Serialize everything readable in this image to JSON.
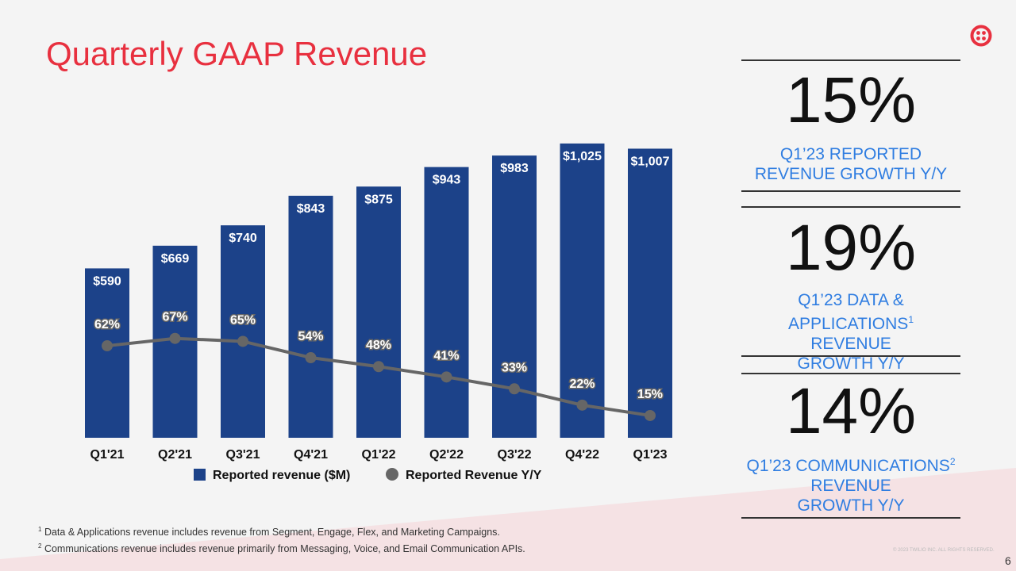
{
  "title": "Quarterly GAAP Revenue",
  "colors": {
    "title": "#e8303f",
    "bar": "#1c4289",
    "line": "#666666",
    "kpi_text": "#2f7de1"
  },
  "kpis": [
    {
      "value": "15%",
      "label": "Q1’23 REPORTED REVENUE GROWTH Y/Y",
      "sup": ""
    },
    {
      "value": "19%",
      "label_lines": [
        "Q1’23 DATA & APPLICATIONS",
        "REVENUE",
        "GROWTH Y/Y"
      ],
      "sup": "1"
    },
    {
      "value": "14%",
      "label_lines": [
        "Q1’23 COMMUNICATIONS",
        "REVENUE",
        "GROWTH Y/Y"
      ],
      "sup": "2"
    }
  ],
  "footnotes": [
    {
      "sup": "1",
      "text": "Data & Applications revenue includes revenue from Segment, Engage, Flex, and Marketing Campaigns."
    },
    {
      "sup": "2",
      "text": "Communications revenue includes revenue primarily from Messaging, Voice, and Email Communication APIs."
    }
  ],
  "copyright": "© 2023 TWILIO INC. ALL RIGHTS RESERVED.",
  "page_number": "6",
  "chart_data": {
    "type": "bar",
    "categories": [
      "Q1'21",
      "Q2'21",
      "Q3'21",
      "Q4'21",
      "Q1'22",
      "Q2'22",
      "Q3'22",
      "Q4'22",
      "Q1'23"
    ],
    "series": [
      {
        "name": "Reported revenue ($M)",
        "type": "bar",
        "values": [
          590,
          669,
          740,
          843,
          875,
          943,
          983,
          1025,
          1007
        ],
        "labels": [
          "$590",
          "$669",
          "$740",
          "$843",
          "$875",
          "$943",
          "$983",
          "$1,025",
          "$1,007"
        ]
      },
      {
        "name": "Reported Revenue Y/Y",
        "type": "line",
        "values": [
          62,
          67,
          65,
          54,
          48,
          41,
          33,
          22,
          15
        ],
        "labels": [
          "62%",
          "67%",
          "65%",
          "54%",
          "48%",
          "41%",
          "33%",
          "22%",
          "15%"
        ]
      }
    ],
    "legend": "bottom",
    "grid": false
  }
}
